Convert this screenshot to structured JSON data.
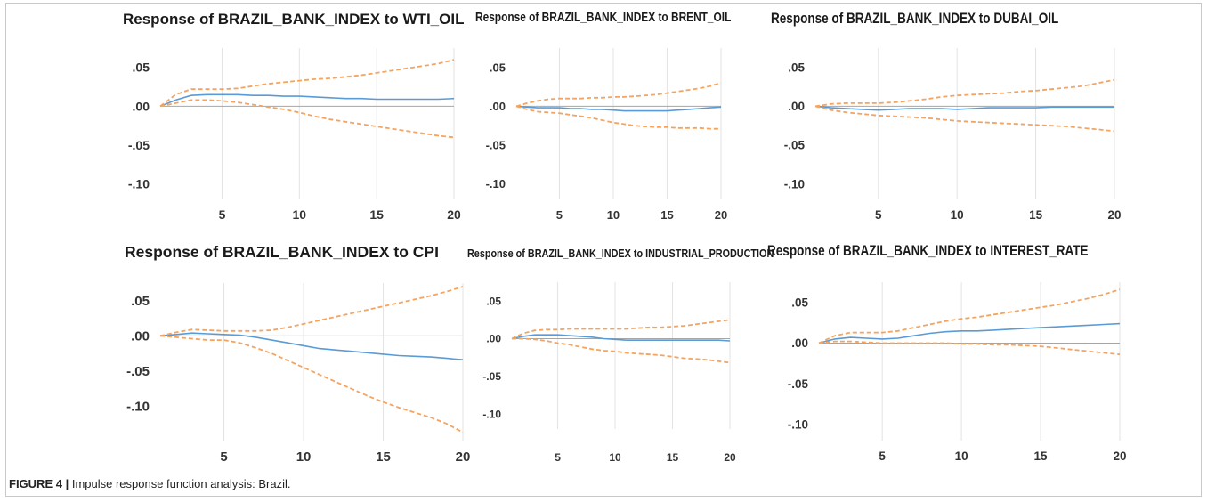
{
  "figure": {
    "caption_label": "FIGURE 4 |",
    "caption_text": "Impulse response function analysis: Brazil."
  },
  "colors": {
    "response_line": "#5b9bd5",
    "confidence_band": "#f4a460",
    "zero_line": "#a6a6a6",
    "gridline": "#e3e3e3"
  },
  "chart_data": [
    {
      "type": "line",
      "title": "Response of BRAZIL_BANK_INDEX to WTI_OIL",
      "x": [
        1,
        2,
        3,
        4,
        5,
        6,
        7,
        8,
        9,
        10,
        11,
        12,
        13,
        14,
        15,
        16,
        17,
        18,
        19,
        20
      ],
      "xticks": [
        5,
        10,
        15,
        20
      ],
      "yticks": [
        0.05,
        0.0,
        -0.05,
        -0.1
      ],
      "ytick_labels": [
        ".05",
        ".00",
        "-.05",
        "-.10"
      ],
      "ylim": [
        -0.12,
        0.075
      ],
      "grid": "vertical",
      "series": [
        {
          "role": "response",
          "values": [
            0.0,
            0.008,
            0.014,
            0.015,
            0.015,
            0.015,
            0.014,
            0.014,
            0.013,
            0.013,
            0.012,
            0.011,
            0.01,
            0.01,
            0.009,
            0.009,
            0.009,
            0.009,
            0.009,
            0.01
          ]
        },
        {
          "role": "upper",
          "values": [
            0.0,
            0.015,
            0.022,
            0.022,
            0.022,
            0.023,
            0.026,
            0.029,
            0.031,
            0.033,
            0.035,
            0.036,
            0.038,
            0.04,
            0.043,
            0.046,
            0.049,
            0.052,
            0.055,
            0.06
          ]
        },
        {
          "role": "lower",
          "values": [
            0.0,
            0.004,
            0.008,
            0.008,
            0.007,
            0.005,
            0.002,
            -0.001,
            -0.004,
            -0.008,
            -0.013,
            -0.017,
            -0.02,
            -0.023,
            -0.026,
            -0.029,
            -0.032,
            -0.035,
            -0.038,
            -0.04
          ]
        }
      ]
    },
    {
      "type": "line",
      "title": "Response of BRAZIL_BANK_INDEX to BRENT_OIL",
      "x": [
        1,
        2,
        3,
        4,
        5,
        6,
        7,
        8,
        9,
        10,
        11,
        12,
        13,
        14,
        15,
        16,
        17,
        18,
        19,
        20
      ],
      "xticks": [
        5,
        10,
        15,
        20
      ],
      "yticks": [
        0.05,
        0.0,
        -0.05,
        -0.1
      ],
      "ytick_labels": [
        ".05",
        ".00",
        "-.05",
        "-.10"
      ],
      "ylim": [
        -0.12,
        0.075
      ],
      "grid": "vertical",
      "series": [
        {
          "role": "response",
          "values": [
            0.0,
            -0.001,
            -0.002,
            -0.002,
            -0.002,
            -0.003,
            -0.003,
            -0.004,
            -0.004,
            -0.005,
            -0.006,
            -0.006,
            -0.006,
            -0.006,
            -0.006,
            -0.005,
            -0.004,
            -0.003,
            -0.002,
            -0.001
          ]
        },
        {
          "role": "upper",
          "values": [
            0.0,
            0.004,
            0.007,
            0.009,
            0.01,
            0.01,
            0.01,
            0.011,
            0.011,
            0.012,
            0.012,
            0.013,
            0.014,
            0.015,
            0.017,
            0.019,
            0.021,
            0.023,
            0.026,
            0.03
          ]
        },
        {
          "role": "lower",
          "values": [
            0.0,
            -0.004,
            -0.007,
            -0.008,
            -0.009,
            -0.011,
            -0.013,
            -0.015,
            -0.018,
            -0.021,
            -0.023,
            -0.025,
            -0.026,
            -0.027,
            -0.027,
            -0.028,
            -0.028,
            -0.028,
            -0.029,
            -0.029
          ]
        }
      ]
    },
    {
      "type": "line",
      "title": "Response of BRAZIL_BANK_INDEX to DUBAI_OIL",
      "x": [
        1,
        2,
        3,
        4,
        5,
        6,
        7,
        8,
        9,
        10,
        11,
        12,
        13,
        14,
        15,
        16,
        17,
        18,
        19,
        20
      ],
      "xticks": [
        5,
        10,
        15,
        20
      ],
      "yticks": [
        0.05,
        0.0,
        -0.05,
        -0.1
      ],
      "ytick_labels": [
        ".05",
        ".00",
        "-.05",
        "-.10"
      ],
      "ylim": [
        -0.12,
        0.075
      ],
      "grid": "vertical",
      "series": [
        {
          "role": "response",
          "values": [
            0.0,
            -0.002,
            -0.003,
            -0.004,
            -0.005,
            -0.004,
            -0.003,
            -0.003,
            -0.003,
            -0.004,
            -0.003,
            -0.002,
            -0.002,
            -0.002,
            -0.002,
            -0.001,
            -0.001,
            -0.001,
            -0.001,
            -0.001
          ]
        },
        {
          "role": "upper",
          "values": [
            0.0,
            0.003,
            0.004,
            0.004,
            0.004,
            0.005,
            0.007,
            0.009,
            0.012,
            0.014,
            0.015,
            0.016,
            0.017,
            0.019,
            0.02,
            0.022,
            0.024,
            0.026,
            0.03,
            0.034
          ]
        },
        {
          "role": "lower",
          "values": [
            0.0,
            -0.005,
            -0.008,
            -0.01,
            -0.012,
            -0.013,
            -0.014,
            -0.015,
            -0.017,
            -0.019,
            -0.02,
            -0.021,
            -0.022,
            -0.023,
            -0.024,
            -0.025,
            -0.026,
            -0.028,
            -0.03,
            -0.032
          ]
        }
      ]
    },
    {
      "type": "line",
      "title": "Response of BRAZIL_BANK_INDEX to CPI",
      "x": [
        1,
        2,
        3,
        4,
        5,
        6,
        7,
        8,
        9,
        10,
        11,
        12,
        13,
        14,
        15,
        16,
        17,
        18,
        19,
        20
      ],
      "xticks": [
        5,
        10,
        15,
        20
      ],
      "yticks": [
        0.05,
        0.0,
        -0.05,
        -0.1
      ],
      "ytick_labels": [
        ".05",
        ".00",
        "-.05",
        "-.10"
      ],
      "ylim": [
        -0.15,
        0.075
      ],
      "grid": "vertical",
      "series": [
        {
          "role": "response",
          "values": [
            0.0,
            0.002,
            0.004,
            0.003,
            0.002,
            0.001,
            -0.002,
            -0.006,
            -0.01,
            -0.014,
            -0.018,
            -0.02,
            -0.022,
            -0.024,
            -0.026,
            -0.028,
            -0.029,
            -0.03,
            -0.032,
            -0.034
          ]
        },
        {
          "role": "upper",
          "values": [
            0.0,
            0.005,
            0.009,
            0.008,
            0.007,
            0.007,
            0.007,
            0.008,
            0.012,
            0.017,
            0.022,
            0.027,
            0.032,
            0.037,
            0.042,
            0.047,
            0.052,
            0.057,
            0.063,
            0.07
          ]
        },
        {
          "role": "lower",
          "values": [
            0.0,
            -0.002,
            -0.004,
            -0.006,
            -0.006,
            -0.01,
            -0.017,
            -0.025,
            -0.035,
            -0.045,
            -0.055,
            -0.065,
            -0.075,
            -0.085,
            -0.094,
            -0.102,
            -0.109,
            -0.116,
            -0.125,
            -0.137
          ]
        }
      ]
    },
    {
      "type": "line",
      "title": "Response of BRAZIL_BANK_INDEX to INDUSTRIAL_PRODUCTION",
      "x": [
        1,
        2,
        3,
        4,
        5,
        6,
        7,
        8,
        9,
        10,
        11,
        12,
        13,
        14,
        15,
        16,
        17,
        18,
        19,
        20
      ],
      "xticks": [
        5,
        10,
        15,
        20
      ],
      "yticks": [
        0.05,
        0.0,
        -0.05,
        -0.1
      ],
      "ytick_labels": [
        ".05",
        ".00",
        "-.05",
        "-.10"
      ],
      "ylim": [
        -0.12,
        0.075
      ],
      "grid": "vertical",
      "series": [
        {
          "role": "response",
          "values": [
            0.0,
            0.003,
            0.005,
            0.005,
            0.005,
            0.004,
            0.003,
            0.002,
            0.0,
            -0.001,
            -0.002,
            -0.002,
            -0.002,
            -0.002,
            -0.002,
            -0.002,
            -0.002,
            -0.002,
            -0.002,
            -0.003
          ]
        },
        {
          "role": "upper",
          "values": [
            0.0,
            0.007,
            0.011,
            0.012,
            0.012,
            0.013,
            0.013,
            0.013,
            0.013,
            0.013,
            0.013,
            0.014,
            0.015,
            0.015,
            0.016,
            0.017,
            0.019,
            0.021,
            0.023,
            0.025
          ]
        },
        {
          "role": "lower",
          "values": [
            0.0,
            0.0,
            -0.001,
            -0.003,
            -0.006,
            -0.008,
            -0.011,
            -0.014,
            -0.016,
            -0.017,
            -0.019,
            -0.02,
            -0.021,
            -0.022,
            -0.024,
            -0.026,
            -0.027,
            -0.028,
            -0.03,
            -0.032
          ]
        }
      ]
    },
    {
      "type": "line",
      "title": "Response of BRAZIL_BANK_INDEX to INTEREST_RATE",
      "x": [
        1,
        2,
        3,
        4,
        5,
        6,
        7,
        8,
        9,
        10,
        11,
        12,
        13,
        14,
        15,
        16,
        17,
        18,
        19,
        20
      ],
      "xticks": [
        5,
        10,
        15,
        20
      ],
      "yticks": [
        0.05,
        0.0,
        -0.05,
        -0.1
      ],
      "ytick_labels": [
        ".05",
        ".00",
        "-.05",
        "-.10"
      ],
      "ylim": [
        -0.12,
        0.075
      ],
      "grid": "vertical",
      "series": [
        {
          "role": "response",
          "values": [
            0.0,
            0.005,
            0.007,
            0.006,
            0.005,
            0.006,
            0.009,
            0.012,
            0.014,
            0.015,
            0.015,
            0.016,
            0.017,
            0.018,
            0.019,
            0.02,
            0.021,
            0.022,
            0.023,
            0.024
          ]
        },
        {
          "role": "upper",
          "values": [
            0.0,
            0.009,
            0.013,
            0.013,
            0.013,
            0.015,
            0.019,
            0.023,
            0.027,
            0.03,
            0.032,
            0.035,
            0.038,
            0.041,
            0.044,
            0.047,
            0.051,
            0.055,
            0.06,
            0.066
          ]
        },
        {
          "role": "lower",
          "values": [
            0.0,
            0.002,
            0.002,
            0.001,
            0.0,
            0.0,
            0.0,
            0.0,
            0.0,
            -0.001,
            -0.001,
            -0.002,
            -0.002,
            -0.003,
            -0.004,
            -0.006,
            -0.008,
            -0.01,
            -0.012,
            -0.014
          ]
        }
      ]
    }
  ]
}
